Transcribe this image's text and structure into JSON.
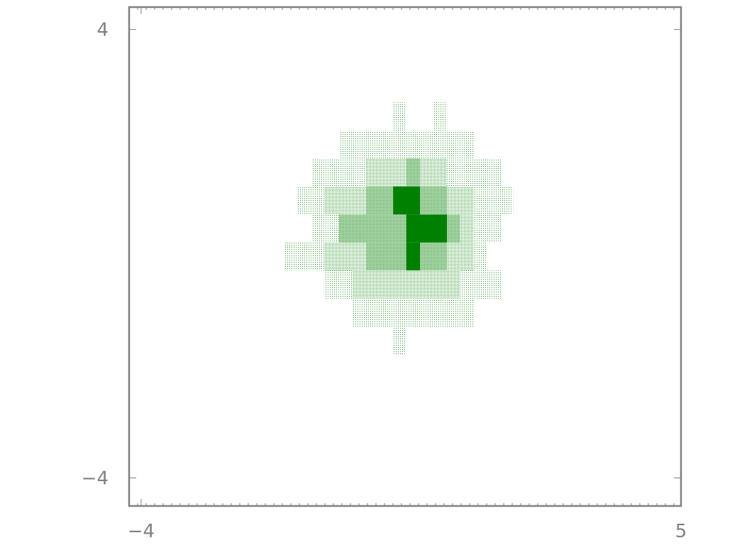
{
  "chart_data": {
    "type": "heatmap",
    "title": "",
    "xlabel": "",
    "ylabel": "",
    "xlim": [
      -4.2,
      5.0
    ],
    "ylim": [
      -4.5,
      4.4
    ],
    "bin_size": 0.45,
    "x_ticks": [
      {
        "value": -4,
        "label": "−4"
      },
      {
        "value": 5,
        "label": "5"
      }
    ],
    "y_ticks": [
      {
        "value": 4,
        "label": "4"
      },
      {
        "value": -4,
        "label": "−4"
      }
    ],
    "grid": false,
    "colors": {
      "fill": "#008000",
      "frame": "#808080",
      "background": "#ffffff"
    },
    "cells": [
      {
        "x": [
          0.2,
          0.42
        ],
        "y": [
          2.2,
          2.7
        ],
        "density": 1
      },
      {
        "x": [
          0.88,
          1.1
        ],
        "y": [
          2.2,
          2.7
        ],
        "density": 1
      },
      {
        "x": [
          -0.7,
          1.55
        ],
        "y": [
          1.7,
          2.2
        ],
        "density": 1
      },
      {
        "x": [
          -1.15,
          -0.25
        ],
        "y": [
          1.2,
          1.7
        ],
        "density": 1
      },
      {
        "x": [
          -0.25,
          0.42
        ],
        "y": [
          1.2,
          1.7
        ],
        "density": 2
      },
      {
        "x": [
          0.42,
          0.65
        ],
        "y": [
          1.2,
          1.7
        ],
        "density": 3
      },
      {
        "x": [
          0.65,
          1.1
        ],
        "y": [
          1.2,
          1.7
        ],
        "density": 2
      },
      {
        "x": [
          1.1,
          2.0
        ],
        "y": [
          1.2,
          1.7
        ],
        "density": 1
      },
      {
        "x": [
          -1.4,
          -0.95
        ],
        "y": [
          0.7,
          1.2
        ],
        "density": 1
      },
      {
        "x": [
          -0.95,
          -0.25
        ],
        "y": [
          0.7,
          1.2
        ],
        "density": 2
      },
      {
        "x": [
          -0.25,
          0.2
        ],
        "y": [
          0.7,
          1.2
        ],
        "density": 3
      },
      {
        "x": [
          0.2,
          0.65
        ],
        "y": [
          0.7,
          1.2
        ],
        "density": 4
      },
      {
        "x": [
          0.65,
          1.1
        ],
        "y": [
          0.7,
          1.2
        ],
        "density": 3
      },
      {
        "x": [
          1.1,
          1.55
        ],
        "y": [
          0.7,
          1.2
        ],
        "density": 2
      },
      {
        "x": [
          1.55,
          2.2
        ],
        "y": [
          0.7,
          1.2
        ],
        "density": 1
      },
      {
        "x": [
          -1.15,
          -0.7
        ],
        "y": [
          0.2,
          0.7
        ],
        "density": 1
      },
      {
        "x": [
          -0.7,
          0.42
        ],
        "y": [
          0.2,
          0.7
        ],
        "density": 3
      },
      {
        "x": [
          0.42,
          1.1
        ],
        "y": [
          0.2,
          0.7
        ],
        "density": 4
      },
      {
        "x": [
          1.1,
          1.32
        ],
        "y": [
          0.2,
          0.7
        ],
        "density": 3
      },
      {
        "x": [
          1.32,
          1.55
        ],
        "y": [
          0.2,
          0.7
        ],
        "density": 2
      },
      {
        "x": [
          1.55,
          2.0
        ],
        "y": [
          0.2,
          0.7
        ],
        "density": 1
      },
      {
        "x": [
          -1.6,
          -0.95
        ],
        "y": [
          -0.3,
          0.2
        ],
        "density": 1
      },
      {
        "x": [
          -0.95,
          -0.25
        ],
        "y": [
          -0.3,
          0.2
        ],
        "density": 2
      },
      {
        "x": [
          -0.25,
          0.42
        ],
        "y": [
          -0.3,
          0.2
        ],
        "density": 3
      },
      {
        "x": [
          0.42,
          0.65
        ],
        "y": [
          -0.3,
          0.2
        ],
        "density": 4
      },
      {
        "x": [
          0.65,
          1.1
        ],
        "y": [
          -0.3,
          0.2
        ],
        "density": 3
      },
      {
        "x": [
          1.1,
          1.55
        ],
        "y": [
          -0.3,
          0.2
        ],
        "density": 2
      },
      {
        "x": [
          1.55,
          1.77
        ],
        "y": [
          -0.3,
          0.2
        ],
        "density": 1
      },
      {
        "x": [
          -0.95,
          -0.48
        ],
        "y": [
          -0.8,
          -0.3
        ],
        "density": 1
      },
      {
        "x": [
          -0.48,
          1.32
        ],
        "y": [
          -0.8,
          -0.3
        ],
        "density": 2
      },
      {
        "x": [
          1.32,
          2.0
        ],
        "y": [
          -0.8,
          -0.3
        ],
        "density": 1
      },
      {
        "x": [
          -0.48,
          1.55
        ],
        "y": [
          -1.3,
          -0.8
        ],
        "density": 1
      },
      {
        "x": [
          0.2,
          0.42
        ],
        "y": [
          -1.8,
          -1.3
        ],
        "density": 1
      }
    ]
  }
}
